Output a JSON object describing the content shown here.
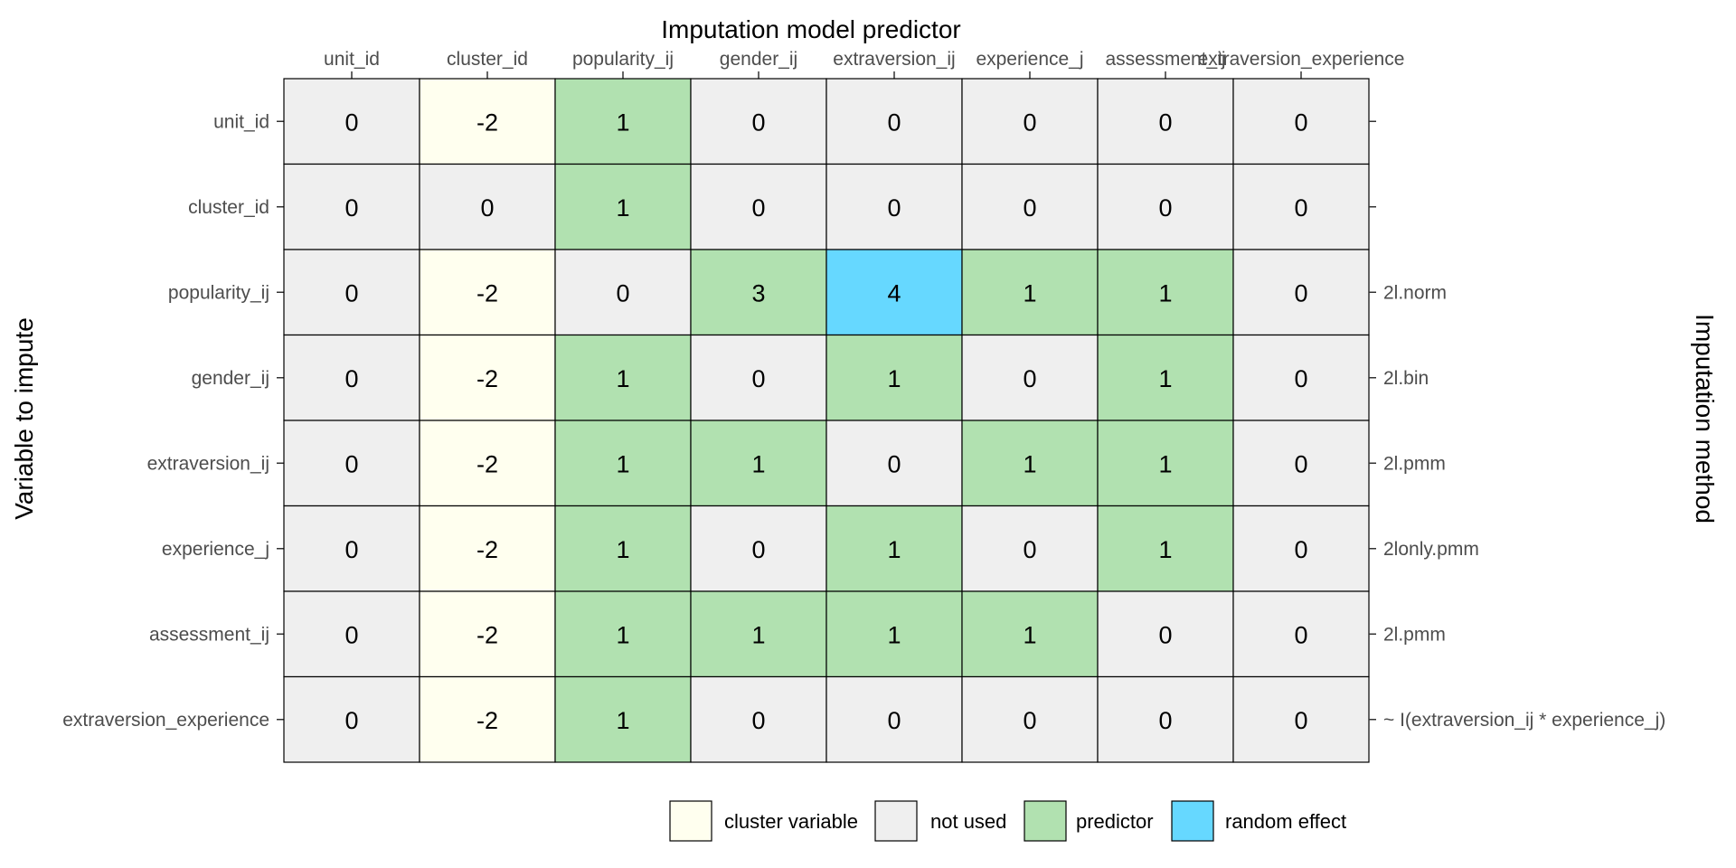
{
  "chart_data": {
    "type": "heatmap",
    "title": "Imputation model predictor",
    "ylabel": "Variable to impute",
    "y2label": "Imputation method",
    "columns": [
      "unit_id",
      "cluster_id",
      "popularity_ij",
      "gender_ij",
      "extraversion_ij",
      "experience_j",
      "assessment_ij",
      "extraversion_experience"
    ],
    "rows": [
      "unit_id",
      "cluster_id",
      "popularity_ij",
      "gender_ij",
      "extraversion_ij",
      "experience_j",
      "assessment_ij",
      "extraversion_experience"
    ],
    "values": [
      [
        0,
        -2,
        1,
        0,
        0,
        0,
        0,
        0
      ],
      [
        0,
        0,
        1,
        0,
        0,
        0,
        0,
        0
      ],
      [
        0,
        -2,
        0,
        3,
        4,
        1,
        1,
        0
      ],
      [
        0,
        -2,
        1,
        0,
        1,
        0,
        1,
        0
      ],
      [
        0,
        -2,
        1,
        1,
        0,
        1,
        1,
        0
      ],
      [
        0,
        -2,
        1,
        0,
        1,
        0,
        1,
        0
      ],
      [
        0,
        -2,
        1,
        1,
        1,
        1,
        0,
        0
      ],
      [
        0,
        -2,
        1,
        0,
        0,
        0,
        0,
        0
      ]
    ],
    "categories": [
      [
        0,
        2,
        1,
        0,
        0,
        0,
        0,
        0
      ],
      [
        0,
        0,
        1,
        0,
        0,
        0,
        0,
        0
      ],
      [
        0,
        2,
        0,
        1,
        3,
        1,
        1,
        0
      ],
      [
        0,
        2,
        1,
        0,
        1,
        0,
        1,
        0
      ],
      [
        0,
        2,
        1,
        1,
        0,
        1,
        1,
        0
      ],
      [
        0,
        2,
        1,
        0,
        1,
        0,
        1,
        0
      ],
      [
        0,
        2,
        1,
        1,
        1,
        1,
        0,
        0
      ],
      [
        0,
        2,
        1,
        0,
        0,
        0,
        0,
        0
      ]
    ],
    "methods": [
      "",
      "",
      "2l.norm",
      "2l.bin",
      "2l.pmm",
      "2lonly.pmm",
      "2l.pmm",
      "~ I(extraversion_ij * experience_j)"
    ],
    "legend": [
      {
        "label": "cluster variable",
        "color": "#FFFFEF"
      },
      {
        "label": "not used",
        "color": "#EFEFEF"
      },
      {
        "label": "predictor",
        "color": "#B1E1B0"
      },
      {
        "label": "random effect",
        "color": "#66D8FF"
      }
    ],
    "category_order": [
      "not used",
      "predictor",
      "cluster variable",
      "random effect"
    ],
    "legend_position": "bottom"
  }
}
